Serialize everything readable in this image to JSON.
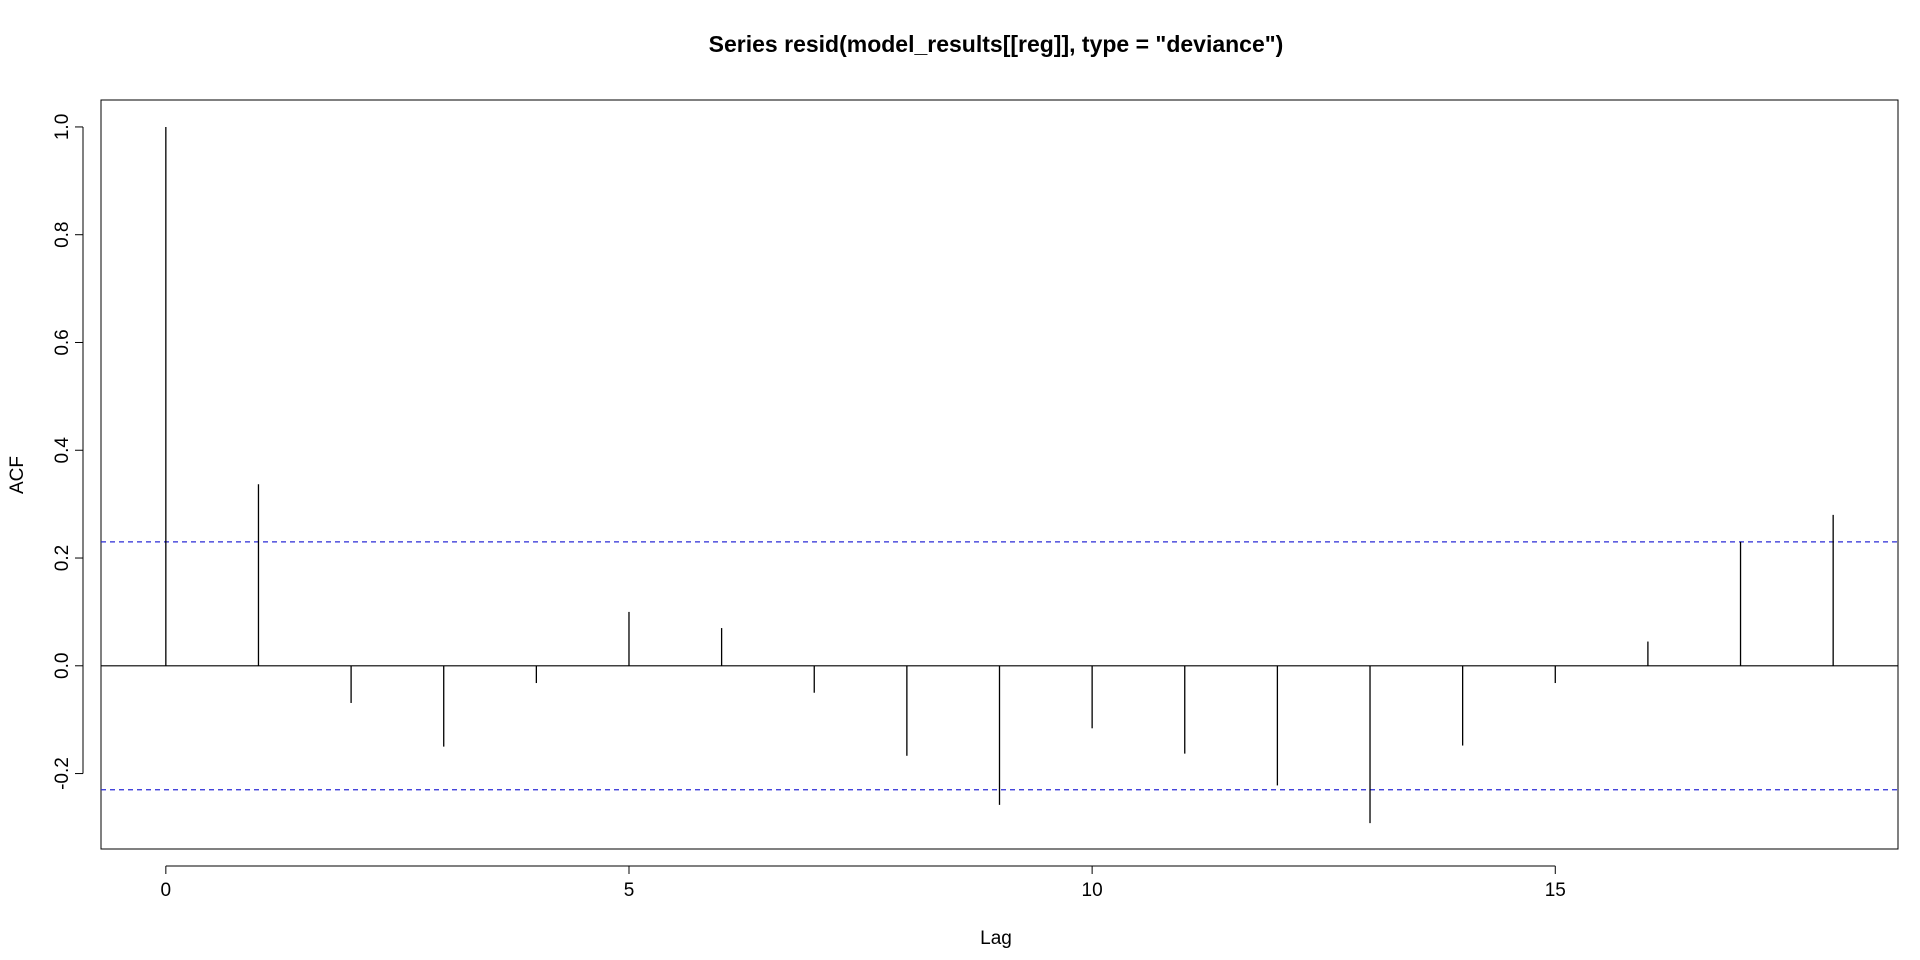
{
  "chart_data": {
    "type": "bar",
    "title": "Series  resid(model_results[[reg]], type = \"deviance\")",
    "xlabel": "Lag",
    "ylabel": "ACF",
    "xlim": [
      -0.7,
      18.7
    ],
    "ylim": [
      -0.34,
      1.05
    ],
    "x_ticks": [
      0,
      5,
      10,
      15
    ],
    "x_tick_labels": [
      "0",
      "5",
      "10",
      "15"
    ],
    "y_ticks": [
      -0.2,
      0.0,
      0.2,
      0.4,
      0.6,
      0.8,
      1.0
    ],
    "y_tick_labels": [
      "-0.2",
      "0.0",
      "0.2",
      "0.4",
      "0.6",
      "0.8",
      "1.0"
    ],
    "lags": [
      0,
      1,
      2,
      3,
      4,
      5,
      6,
      7,
      8,
      9,
      10,
      11,
      12,
      13,
      14,
      15,
      16,
      17,
      18
    ],
    "values": [
      1.0,
      0.337,
      -0.069,
      -0.15,
      -0.032,
      0.1,
      0.07,
      -0.05,
      -0.167,
      -0.258,
      -0.116,
      -0.163,
      -0.222,
      -0.292,
      -0.148,
      -0.032,
      0.045,
      0.23,
      0.28
    ],
    "confidence_limits": [
      0.23,
      -0.23
    ],
    "colors": {
      "spikes": "#000000",
      "confidence_lines": "#2b2bd6",
      "zero_line": "#000000",
      "frame": "#000000"
    },
    "grid": false,
    "legend": "none"
  }
}
